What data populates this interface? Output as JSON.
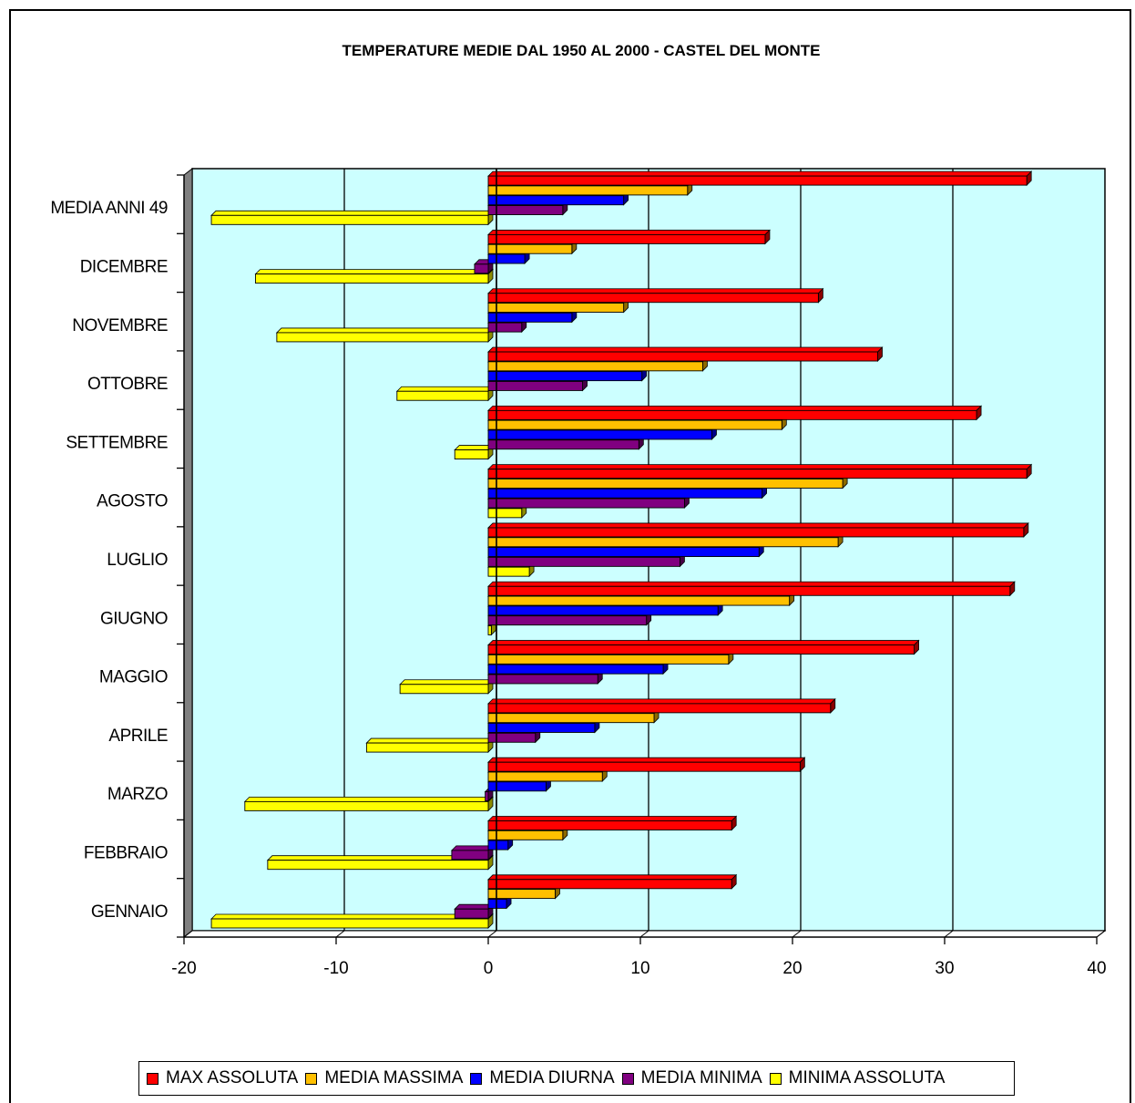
{
  "chart_data": {
    "type": "bar",
    "orientation": "horizontal",
    "title": "TEMPERATURE MEDIE DAL 1950 AL 2000 - CASTEL DEL MONTE",
    "categories": [
      "GENNAIO",
      "FEBBRAIO",
      "MARZO",
      "APRILE",
      "MAGGIO",
      "GIUGNO",
      "LUGLIO",
      "AGOSTO",
      "SETTEMBRE",
      "OTTOBRE",
      "NOVEMBRE",
      "DICEMBRE",
      "MEDIA ANNI 49"
    ],
    "xlim": [
      -20,
      40
    ],
    "xticks": [
      "-20",
      "-10",
      "0",
      "10",
      "20",
      "30",
      "40"
    ],
    "grid": true,
    "legend_position": "bottom",
    "series": [
      {
        "name": "MAX ASSOLUTA",
        "color": "#ff0000",
        "values": [
          16.0,
          16.0,
          20.5,
          22.5,
          28.0,
          34.3,
          35.2,
          35.4,
          32.1,
          25.6,
          21.7,
          18.2,
          35.4
        ]
      },
      {
        "name": "MEDIA MASSIMA",
        "color": "#ffc000",
        "values": [
          4.4,
          4.9,
          7.5,
          10.9,
          15.8,
          19.8,
          23.0,
          23.3,
          19.3,
          14.1,
          8.9,
          5.5,
          13.1
        ]
      },
      {
        "name": "MEDIA DIURNA",
        "color": "#0000ff",
        "values": [
          1.2,
          1.3,
          3.8,
          7.0,
          11.5,
          15.1,
          17.8,
          18.0,
          14.7,
          10.1,
          5.5,
          2.4,
          8.9
        ]
      },
      {
        "name": "MEDIA MINIMA",
        "color": "#800080",
        "values": [
          -2.2,
          -2.4,
          -0.2,
          3.1,
          7.2,
          10.4,
          12.6,
          12.9,
          9.9,
          6.2,
          2.2,
          -0.9,
          4.9
        ]
      },
      {
        "name": "MINIMA ASSOLUTA",
        "color": "#ffff00",
        "values": [
          -18.2,
          -14.5,
          -16.0,
          -8.0,
          -5.8,
          0.2,
          2.7,
          2.2,
          -2.2,
          -6.0,
          -13.9,
          -15.3,
          -18.2
        ]
      }
    ]
  }
}
